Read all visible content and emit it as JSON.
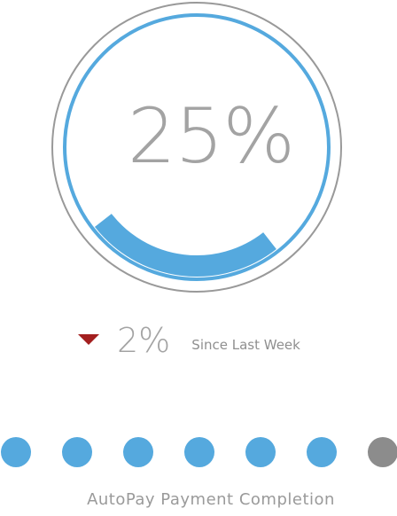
{
  "gauge": {
    "value_label": "25%",
    "progress_fraction": 0.25,
    "colors": {
      "progress": "#55a9de",
      "ring": "#55a9de",
      "outer_ring": "#999999"
    }
  },
  "trend": {
    "direction": "down",
    "icon": "triangle-down-icon",
    "value": "2%",
    "label": "Since Last Week",
    "color": "#a31f1f"
  },
  "pager": {
    "dots": [
      {
        "state": "filled",
        "color": "#55a9de"
      },
      {
        "state": "filled",
        "color": "#55a9de"
      },
      {
        "state": "filled",
        "color": "#55a9de"
      },
      {
        "state": "filled",
        "color": "#55a9de"
      },
      {
        "state": "filled",
        "color": "#55a9de"
      },
      {
        "state": "filled",
        "color": "#55a9de"
      },
      {
        "state": "inactive",
        "color": "#8c8c8c"
      }
    ]
  },
  "caption": "AutoPay Payment Completion"
}
